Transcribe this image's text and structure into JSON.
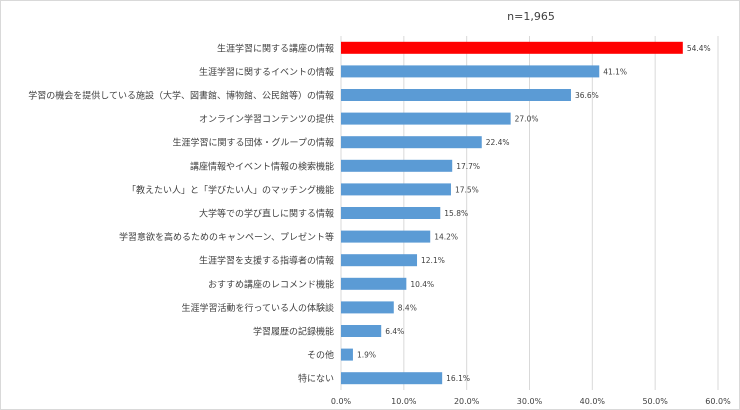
{
  "chart_data": {
    "type": "bar",
    "orientation": "horizontal",
    "title": "n=1,965",
    "categories": [
      "生涯学習に関する講座の情報",
      "生涯学習に関するイベントの情報",
      "学習の機会を提供している施設（大学、図書館、博物館、公民館等）の情報",
      "オンライン学習コンテンツの提供",
      "生涯学習に関する団体・グループの情報",
      "講座情報やイベント情報の検索機能",
      "「教えたい人」と「学びたい人」のマッチング機能",
      "大学等での学び直しに関する情報",
      "学習意欲を高めるためのキャンペーン、プレゼント等",
      "生涯学習を支援する指導者の情報",
      "おすすめ講座のレコメンド機能",
      "生涯学習活動を行っている人の体験談",
      "学習履歴の記録機能",
      "その他",
      "特にない"
    ],
    "values": [
      54.4,
      41.1,
      36.6,
      27.0,
      22.4,
      17.7,
      17.5,
      15.8,
      14.2,
      12.1,
      10.4,
      8.4,
      6.4,
      1.9,
      16.1
    ],
    "value_labels": [
      "54.4%",
      "41.1%",
      "36.6%",
      "27.0%",
      "22.4%",
      "17.7%",
      "17.5%",
      "15.8%",
      "14.2%",
      "12.1%",
      "10.4%",
      "8.4%",
      "6.4%",
      "1.9%",
      "16.1%"
    ],
    "xlim": [
      0,
      60
    ],
    "x_ticks": [
      "0.0%",
      "10.0%",
      "20.0%",
      "30.0%",
      "40.0%",
      "50.0%",
      "60.0%"
    ],
    "grid": true,
    "legend": "none",
    "colors": {
      "bar": "#5b9bd5",
      "highlight": "#ff0000",
      "grid": "#d9d9d9",
      "text": "#404040"
    },
    "highlight_index": 0
  }
}
